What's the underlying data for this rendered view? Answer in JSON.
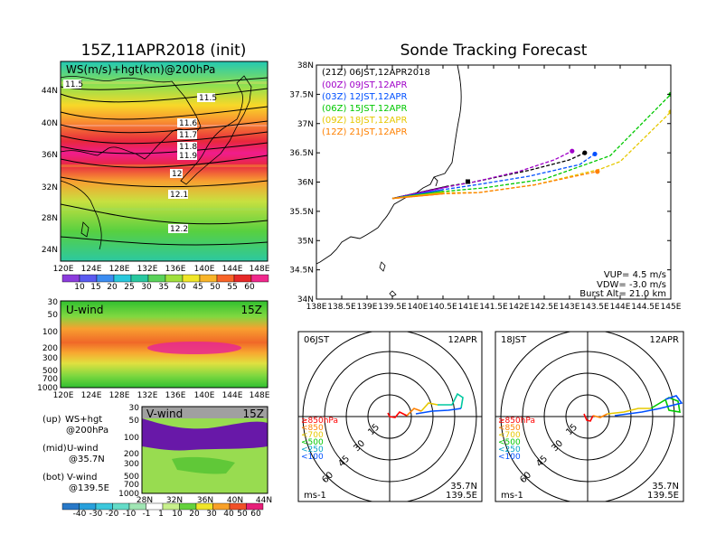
{
  "left": {
    "title": "15Z,11APR2018 (init)",
    "top_panel": {
      "label": "WS(m/s)+hgt(km)@200hPa",
      "x_ticks": [
        "120E",
        "124E",
        "128E",
        "132E",
        "136E",
        "140E",
        "144E",
        "148E"
      ],
      "y_ticks": [
        "44N",
        "40N",
        "36N",
        "32N",
        "28N",
        "24N"
      ],
      "contour_labels": [
        "11.5",
        "11.5",
        "11.6",
        "11.7",
        "11.8",
        "11.9",
        "12",
        "12.1",
        "12.2"
      ],
      "colorbar_ticks": [
        "10",
        "15",
        "20",
        "25",
        "30",
        "35",
        "40",
        "45",
        "50",
        "55",
        "60"
      ]
    },
    "uwind_panel": {
      "label": "U-wind",
      "time": "15Z",
      "y_ticks": [
        "30",
        "50",
        "100",
        "200",
        "300",
        "500",
        "700",
        "1000"
      ],
      "x_ticks": [
        "120E",
        "124E",
        "128E",
        "132E",
        "136E",
        "140E",
        "144E",
        "148E"
      ]
    },
    "vwind_panel": {
      "label": "V-wind",
      "time": "15Z",
      "y_ticks": [
        "30",
        "50",
        "100",
        "200",
        "300",
        "500",
        "700",
        "1000"
      ],
      "x_ticks": [
        "28N",
        "32N",
        "36N",
        "40N",
        "44N"
      ],
      "colorbar_ticks": [
        "-40",
        "-30",
        "-20",
        "-10",
        "-1",
        "1",
        "10",
        "20",
        "30",
        "40",
        "50",
        "60"
      ]
    },
    "notes": [
      {
        "tag": "(up)",
        "l1": "WS+hgt",
        "l2": "@200hPa"
      },
      {
        "tag": "(mid)",
        "l1": "U-wind",
        "l2": "@35.7N"
      },
      {
        "tag": "(bot)",
        "l1": "V-wind",
        "l2": "@139.5E"
      }
    ]
  },
  "chart_data": [
    {
      "type": "line",
      "title": "Sonde Tracking Forecast",
      "xlim": [
        138,
        145
      ],
      "ylim": [
        34,
        38
      ],
      "x_ticks": [
        "138E",
        "138.5E",
        "139E",
        "139.5E",
        "140E",
        "140.5E",
        "141E",
        "141.5E",
        "142E",
        "142.5E",
        "143E",
        "143.5E",
        "144E",
        "144.5E",
        "145E"
      ],
      "y_ticks": [
        "38N",
        "37.5N",
        "37N",
        "36.5N",
        "36N",
        "35.5N",
        "35N",
        "34.5N",
        "34N"
      ],
      "legend_placement": "top-left",
      "series": [
        {
          "name": "(21Z) 06JST,12APR2018",
          "color": "#000000",
          "points": [
            [
              139.5,
              35.72
            ],
            [
              140.6,
              35.93
            ],
            [
              141.1,
              36.0
            ],
            [
              142.2,
              36.2
            ],
            [
              143.0,
              36.38
            ],
            [
              143.3,
              36.5
            ]
          ]
        },
        {
          "name": "(00Z) 09JST,12APR",
          "color": "#a000c8",
          "points": [
            [
              139.5,
              35.72
            ],
            [
              140.6,
              35.92
            ],
            [
              141.1,
              36.0
            ],
            [
              142.0,
              36.18
            ],
            [
              142.7,
              36.38
            ],
            [
              143.05,
              36.53
            ]
          ]
        },
        {
          "name": "(03Z) 12JST,12APR",
          "color": "#0050ff",
          "points": [
            [
              139.5,
              35.72
            ],
            [
              140.5,
              35.87
            ],
            [
              141.2,
              35.96
            ],
            [
              142.2,
              36.1
            ],
            [
              143.2,
              36.3
            ],
            [
              143.5,
              36.48
            ]
          ]
        },
        {
          "name": "(06Z) 15JST,12APR",
          "color": "#00c800",
          "points": [
            [
              139.5,
              35.72
            ],
            [
              140.5,
              35.84
            ],
            [
              141.3,
              35.9
            ],
            [
              142.5,
              36.05
            ],
            [
              143.8,
              36.45
            ],
            [
              145.0,
              37.5
            ]
          ]
        },
        {
          "name": "(09Z) 18JST,12APR",
          "color": "#e6c800",
          "points": [
            [
              139.5,
              35.72
            ],
            [
              140.5,
              35.82
            ],
            [
              141.2,
              35.82
            ],
            [
              142.3,
              35.95
            ],
            [
              143.6,
              36.22
            ],
            [
              144.0,
              36.35
            ],
            [
              145.0,
              37.2
            ]
          ]
        },
        {
          "name": "(12Z) 21JST,12APR",
          "color": "#ff8000",
          "points": [
            [
              139.5,
              35.72
            ],
            [
              140.5,
              35.8
            ],
            [
              141.2,
              35.82
            ],
            [
              142.3,
              35.95
            ],
            [
              143.55,
              36.18
            ]
          ]
        }
      ],
      "annotations": {
        "vup": "VUP=  4.5 m/s",
        "vdw": "VDW= -3.0 m/s",
        "burst": "Burst Alt= 21.0 km"
      }
    },
    {
      "type": "line",
      "title": "06JST",
      "date": "12APR",
      "level_labels": [
        "≥850hPa",
        "<850",
        "<700",
        "<500",
        "<250",
        "<100"
      ],
      "level_colors": [
        "#ff0000",
        "#ff8000",
        "#e6c800",
        "#00c800",
        "#00a0c8",
        "#0050ff"
      ],
      "ring_labels": [
        "15",
        "30",
        "45",
        "60"
      ],
      "unit": "ms-1",
      "location": [
        "35.7N",
        "139.5E"
      ]
    },
    {
      "type": "line",
      "title": "18JST",
      "date": "12APR",
      "level_labels": [
        "≥850hPa",
        "<850",
        "<700",
        "<500",
        "<250",
        "<100"
      ],
      "level_colors": [
        "#ff0000",
        "#ff8000",
        "#e6c800",
        "#00c800",
        "#00a0c8",
        "#0050ff"
      ],
      "ring_labels": [
        "15",
        "30",
        "45",
        "60"
      ],
      "unit": "ms-1",
      "location": [
        "35.7N",
        "139.5E"
      ]
    }
  ]
}
